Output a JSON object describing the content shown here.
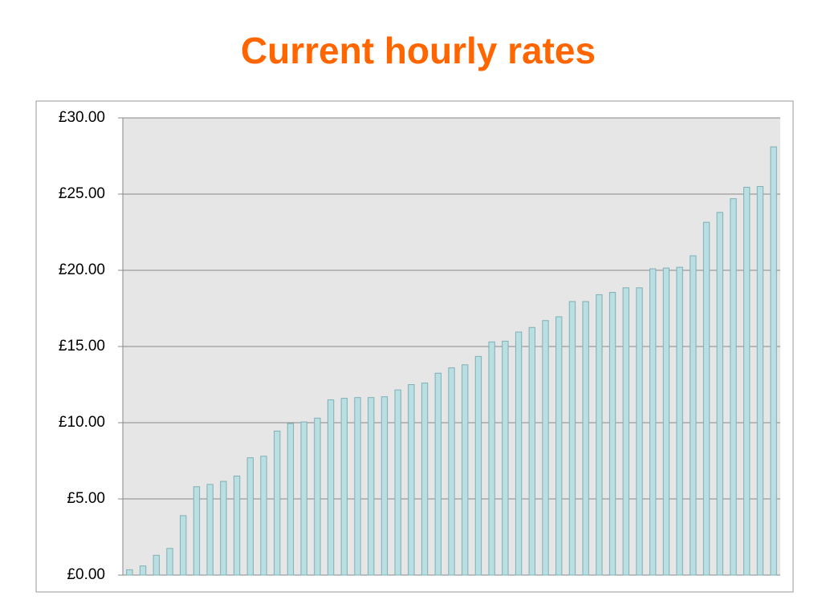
{
  "chart_data": {
    "type": "bar",
    "title": "Current hourly rates",
    "categories": [
      null,
      null,
      null,
      null,
      null,
      null,
      null,
      null,
      null,
      null,
      null,
      null,
      null,
      null,
      null,
      null,
      null,
      null,
      null,
      null,
      null,
      null,
      null,
      null,
      null,
      null,
      null,
      null,
      null,
      null,
      null,
      null,
      null,
      null,
      null,
      null,
      null,
      null,
      null,
      null,
      null,
      null,
      null,
      null,
      null,
      null,
      null,
      null,
      null
    ],
    "values": [
      0.35,
      0.6,
      1.3,
      1.75,
      3.9,
      5.8,
      5.95,
      6.15,
      6.5,
      7.7,
      7.8,
      9.45,
      9.95,
      10.05,
      10.3,
      11.5,
      11.6,
      11.65,
      11.65,
      11.7,
      12.15,
      12.5,
      12.6,
      13.25,
      13.6,
      13.8,
      14.35,
      15.3,
      15.35,
      15.95,
      16.25,
      16.7,
      16.95,
      17.95,
      17.95,
      18.4,
      18.55,
      18.85,
      18.85,
      20.1,
      20.15,
      20.2,
      20.95,
      23.15,
      23.8,
      24.7,
      25.45,
      25.5,
      28.1
    ],
    "color": "#b9dfe2",
    "ylim": [
      0,
      30
    ],
    "yticks": [
      {
        "value": 0,
        "label": "£0.00"
      },
      {
        "value": 5,
        "label": "£5.00"
      },
      {
        "value": 10,
        "label": "£10.00"
      },
      {
        "value": 15,
        "label": "£15.00"
      },
      {
        "value": 20,
        "label": "£20.00"
      },
      {
        "value": 25,
        "label": "£25.00"
      },
      {
        "value": 30,
        "label": "£30.00"
      }
    ],
    "grid": true
  }
}
